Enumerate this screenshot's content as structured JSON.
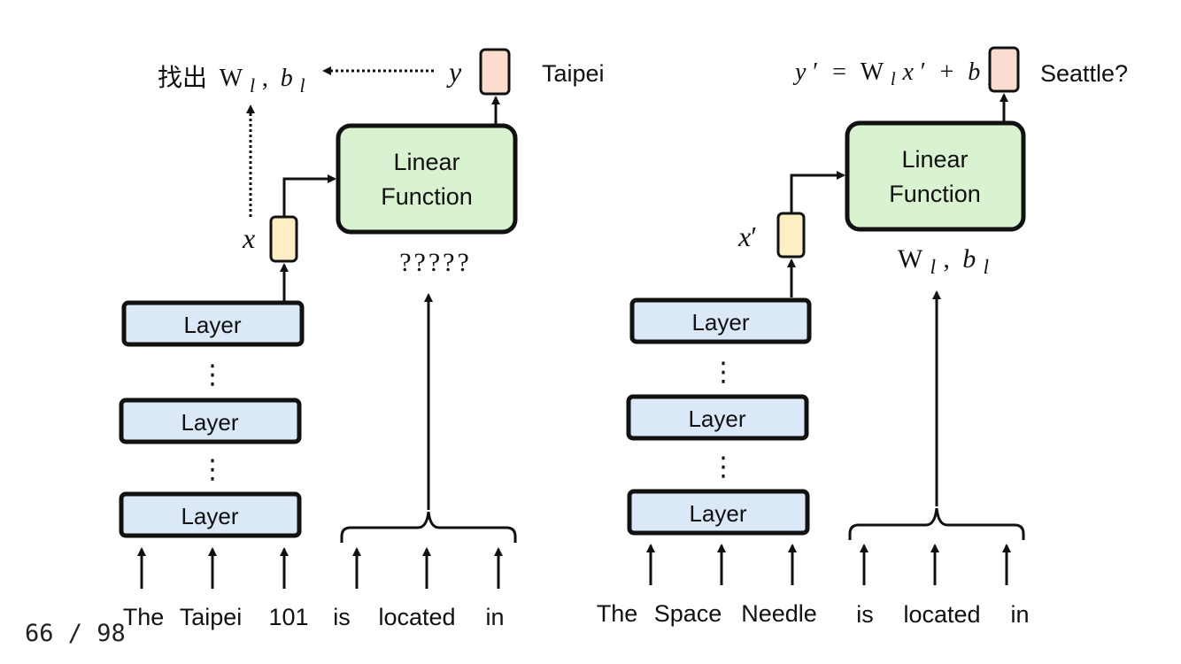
{
  "page_indicator": "66 / 98",
  "left_panel": {
    "extract_text": "找出",
    "extract_math": {
      "W": "W",
      "W_sub": "l",
      "comma": ",",
      "b": "b",
      "b_sub": "l"
    },
    "output_var": "y",
    "output_word": "Taipei",
    "input_var": "x",
    "linear_function": [
      "Linear",
      "Function"
    ],
    "unknown_params": "?????",
    "layers": [
      "Layer",
      "Layer",
      "Layer"
    ],
    "ellipsis": "⋮",
    "tokens": [
      "The",
      "Taipei",
      "101",
      "is",
      "located",
      "in"
    ]
  },
  "right_panel": {
    "equation": {
      "y": "y",
      "prime": "′",
      "eq": "=",
      "W": "W",
      "W_sub": "l",
      "x": "x",
      "plus": "+",
      "b": "b",
      "b_sub": "l"
    },
    "output_word": "Seattle?",
    "input_var": "x",
    "input_prime": "′",
    "linear_function": [
      "Linear",
      "Function"
    ],
    "params": {
      "W": "W",
      "W_sub": "l",
      "comma": ",",
      "b": "b",
      "b_sub": "l"
    },
    "layers": [
      "Layer",
      "Layer",
      "Layer"
    ],
    "ellipsis": "⋮",
    "tokens": [
      "The",
      "Space",
      "Needle",
      "is",
      "located",
      "in"
    ]
  },
  "colors": {
    "layer_fill": "#dae8f7",
    "linear_fill": "#d9f2d0",
    "input_fill": "#fdefc3",
    "output_fill": "#fbdccf",
    "stroke": "#111111"
  }
}
